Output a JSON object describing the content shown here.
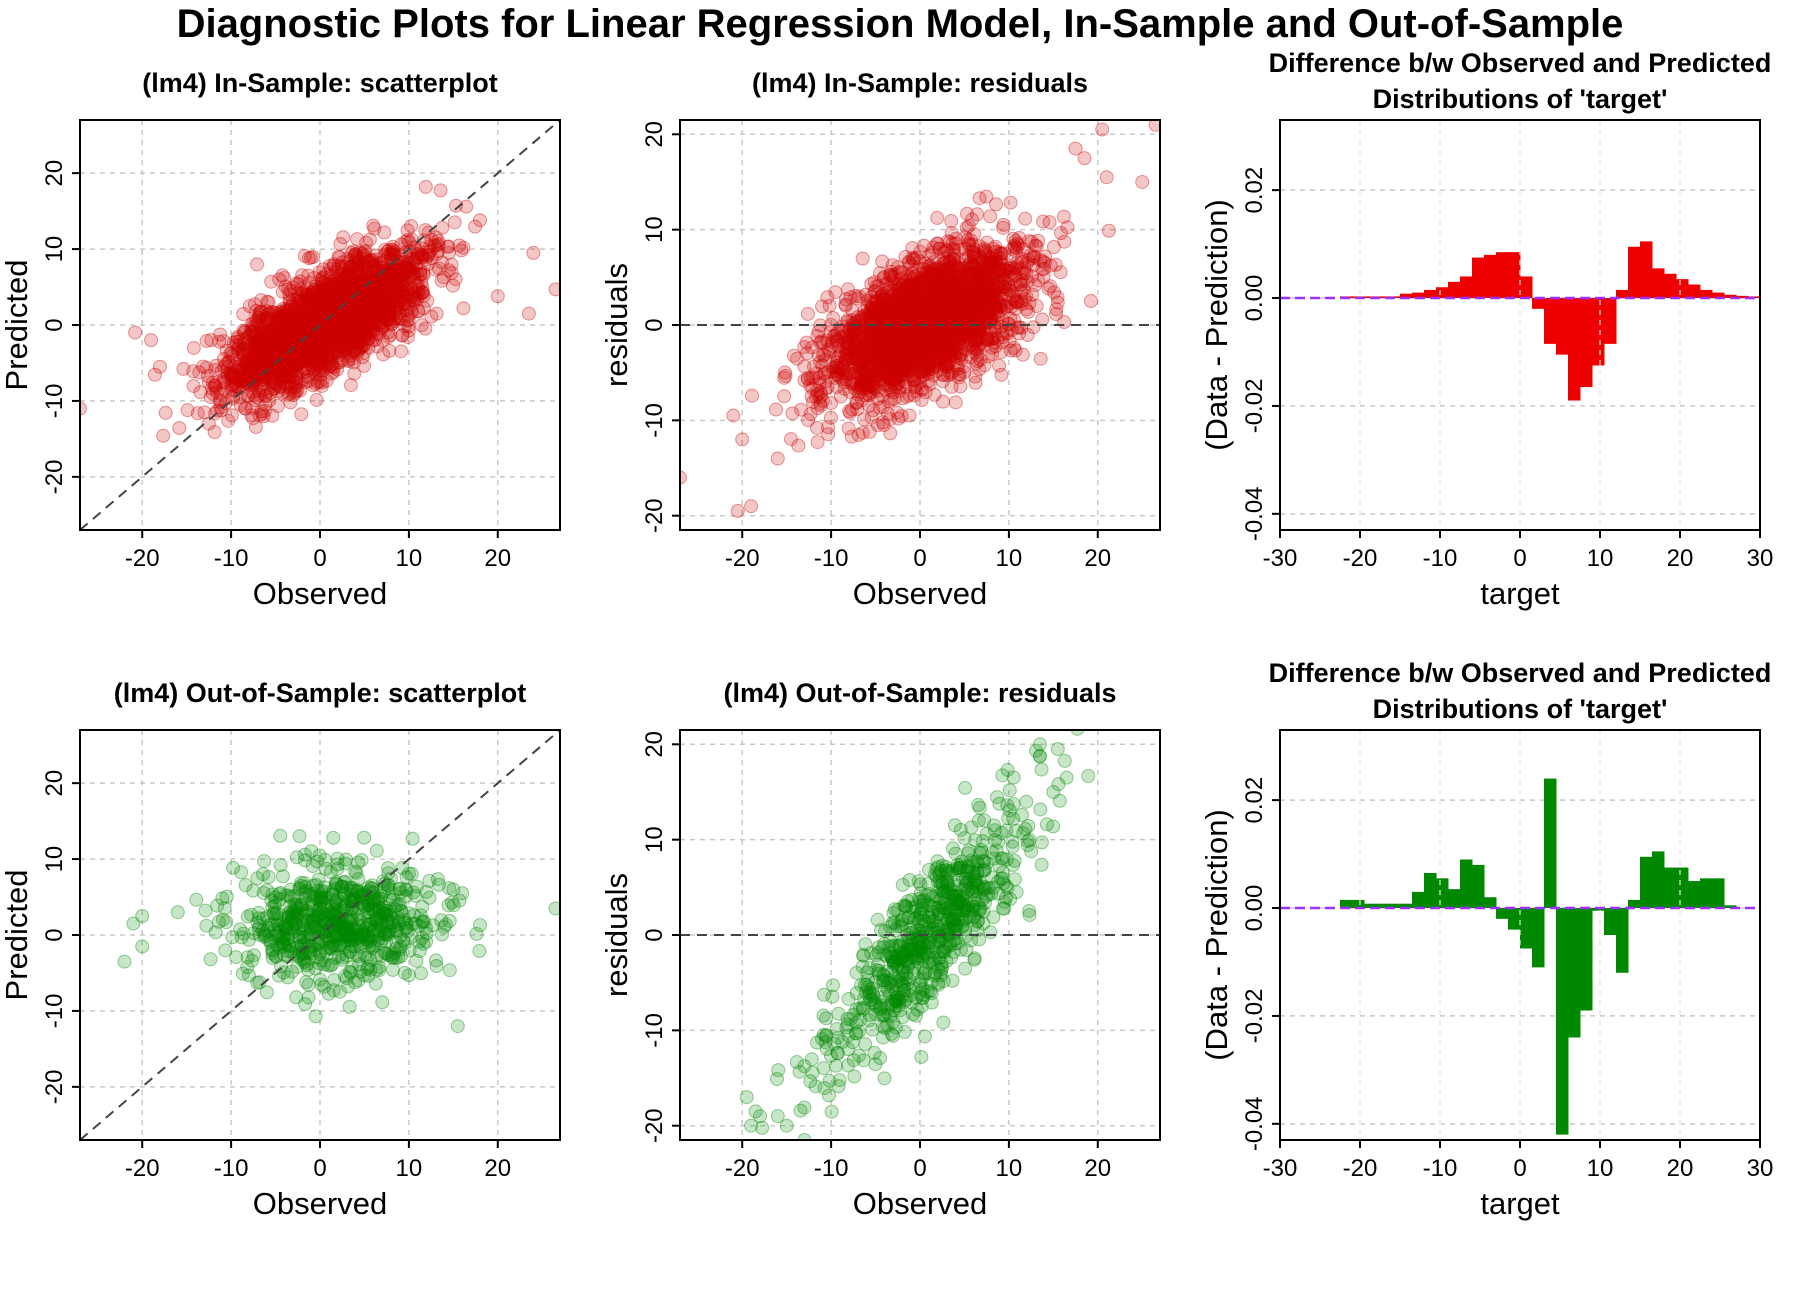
{
  "figure": {
    "title": "Diagnostic Plots for Linear Regression Model, In-Sample and Out-of-Sample"
  },
  "colors": {
    "in_sample": "#cc0000",
    "out_of_sample": "#008800",
    "zero_line": "#9b30ff",
    "reference_line": "#444444"
  },
  "chart_data": [
    {
      "type": "scatter",
      "title": "(lm4) In-Sample: scatterplot",
      "xlabel": "Observed",
      "ylabel": "Predicted",
      "xlim": [
        -27,
        27
      ],
      "ylim": [
        -27,
        27
      ],
      "xticks": [
        -20,
        -10,
        0,
        10,
        20
      ],
      "yticks": [
        -20,
        -10,
        0,
        10,
        20
      ],
      "grid": true,
      "color": "#cc0000",
      "reference_line": "y = x (dashed)",
      "point_cloud": {
        "n": 2500,
        "x_mean": 0.5,
        "x_sd": 5.5,
        "slope": 0.6,
        "intercept": 0,
        "noise_sd": 3.2,
        "seed": 11
      },
      "points": [
        [
          -27,
          -11
        ],
        [
          26.5,
          4.7
        ],
        [
          24,
          9.5
        ],
        [
          23.5,
          1.5
        ],
        [
          20,
          3.8
        ],
        [
          18,
          13.8
        ],
        [
          15.3,
          15.7
        ],
        [
          -20.8,
          -1
        ],
        [
          -19,
          -2
        ],
        [
          -18,
          -5.5
        ],
        [
          -13,
          -11.5
        ],
        [
          -12.5,
          -13
        ],
        [
          -9,
          -9.5
        ]
      ]
    },
    {
      "type": "scatter",
      "title": "(lm4) In-Sample: residuals",
      "xlabel": "Observed",
      "ylabel": "residuals",
      "xlim": [
        -27,
        27
      ],
      "ylim": [
        -21.5,
        21.5
      ],
      "xticks": [
        -20,
        -10,
        0,
        10,
        20
      ],
      "yticks": [
        -20,
        -10,
        0,
        10,
        20
      ],
      "grid": true,
      "color": "#cc0000",
      "reference_line": "y = 0 (dashed)",
      "point_cloud": {
        "n": 2500,
        "x_mean": 0.5,
        "x_sd": 5.5,
        "slope": 0.4,
        "intercept": 0,
        "noise_sd": 3.2,
        "seed": 23
      },
      "points": [
        [
          26.5,
          21
        ],
        [
          20.5,
          20.5
        ],
        [
          25,
          15
        ],
        [
          21,
          15.5
        ],
        [
          18.5,
          17.5
        ],
        [
          17.5,
          18.5
        ],
        [
          -27,
          -16
        ],
        [
          -20.5,
          -19.5
        ],
        [
          -19,
          -19
        ],
        [
          -21,
          -9.5
        ],
        [
          -20,
          -12
        ],
        [
          -16,
          -14
        ]
      ]
    },
    {
      "type": "bar",
      "title": "Difference b/w Observed and Predicted\nDistributions of 'target'",
      "xlabel": "target",
      "ylabel": "(Data - Prediction)",
      "xlim": [
        -30,
        30
      ],
      "ylim": [
        -0.043,
        0.033
      ],
      "xticks": [
        -30,
        -20,
        -10,
        0,
        10,
        20,
        30
      ],
      "yticks": [
        -0.04,
        -0.02,
        0.0,
        0.02
      ],
      "ytick_labels": [
        "-0.04",
        "-0.02",
        "0.00",
        "0.02"
      ],
      "grid": true,
      "color": "#ee0000",
      "zero_line": "dashed, purple",
      "bin_width": 1.5,
      "bin_start": -22.5,
      "values": [
        0.0003,
        0.0003,
        0.0003,
        0.0003,
        0.0003,
        0.0008,
        0.001,
        0.0015,
        0.002,
        0.003,
        0.004,
        0.0075,
        0.008,
        0.0085,
        0.0085,
        0.004,
        -0.002,
        -0.0085,
        -0.0105,
        -0.019,
        -0.0165,
        -0.0125,
        -0.0085,
        0.0015,
        0.0095,
        0.0105,
        0.0055,
        0.0045,
        0.0035,
        0.0025,
        0.0015,
        0.001,
        0.0006,
        0.0004,
        0.0003,
        0.0002,
        0.0002
      ]
    },
    {
      "type": "scatter",
      "title": "(lm4) Out-of-Sample: scatterplot",
      "xlabel": "Observed",
      "ylabel": "Predicted",
      "xlim": [
        -27,
        27
      ],
      "ylim": [
        -27,
        27
      ],
      "xticks": [
        -20,
        -10,
        0,
        10,
        20
      ],
      "yticks": [
        -20,
        -10,
        0,
        10,
        20
      ],
      "grid": true,
      "color": "#008800",
      "reference_line": "y = x (dashed)",
      "point_cloud": {
        "n": 700,
        "x_mean": 2,
        "x_sd": 5.5,
        "slope": 0.05,
        "intercept": 1.5,
        "noise_sd": 3.8,
        "seed": 37
      },
      "points": [
        [
          26.5,
          3.5
        ],
        [
          -21,
          1.5
        ],
        [
          -20,
          2.5
        ],
        [
          -22,
          -3.5
        ],
        [
          -20,
          -1.5
        ],
        [
          -16,
          3
        ],
        [
          15.5,
          -12
        ],
        [
          15,
          6
        ],
        [
          16,
          5.5
        ],
        [
          18,
          1.3
        ],
        [
          1.5,
          12.8
        ]
      ]
    },
    {
      "type": "scatter",
      "title": "(lm4) Out-of-Sample: residuals",
      "xlabel": "Observed",
      "ylabel": "residuals",
      "xlim": [
        -27,
        27
      ],
      "ylim": [
        -21.5,
        21.5
      ],
      "xticks": [
        -20,
        -10,
        0,
        10,
        20
      ],
      "yticks": [
        -20,
        -10,
        0,
        10,
        20
      ],
      "grid": true,
      "color": "#008800",
      "reference_line": "y = 0 (dashed)",
      "point_cloud": {
        "n": 700,
        "x_mean": 1,
        "x_sd": 5.5,
        "slope": 1.0,
        "intercept": -1,
        "noise_sd": 3.5,
        "seed": 53
      },
      "points": [
        [
          -19.5,
          -17
        ],
        [
          -18.5,
          -18.5
        ],
        [
          -18,
          -19
        ],
        [
          -19,
          -20
        ],
        [
          -15,
          -20
        ],
        [
          -16,
          -19
        ],
        [
          -13,
          -21.5
        ],
        [
          13.5,
          20
        ],
        [
          15.5,
          19.5
        ],
        [
          16.5,
          16.5
        ],
        [
          15,
          15
        ]
      ]
    },
    {
      "type": "bar",
      "title": "Difference b/w Observed and Predicted\nDistributions of 'target'",
      "xlabel": "target",
      "ylabel": "(Data - Prediction)",
      "xlim": [
        -30,
        30
      ],
      "ylim": [
        -0.043,
        0.033
      ],
      "xticks": [
        -30,
        -20,
        -10,
        0,
        10,
        20,
        30
      ],
      "yticks": [
        -0.04,
        -0.02,
        0.0,
        0.02
      ],
      "ytick_labels": [
        "-0.04",
        "-0.02",
        "0.00",
        "0.02"
      ],
      "grid": true,
      "color": "#008800",
      "zero_line": "dashed, purple",
      "bin_width": 1.5,
      "bin_start": -22.5,
      "values": [
        0.0015,
        0.0015,
        0.0008,
        0.0008,
        0.0008,
        0.0008,
        0.003,
        0.0065,
        0.0055,
        0.0035,
        0.009,
        0.008,
        0.002,
        -0.002,
        -0.004,
        -0.0075,
        -0.011,
        0.024,
        -0.042,
        -0.024,
        -0.019,
        -0.0005,
        -0.005,
        -0.012,
        0.0015,
        0.0095,
        0.0105,
        0.0075,
        0.0075,
        0.005,
        0.0055,
        0.0055,
        0.0005,
        0.0,
        0.0,
        0.0,
        0.0,
        0.0,
        0.0,
        0.0,
        0.0,
        0.0015
      ]
    }
  ]
}
